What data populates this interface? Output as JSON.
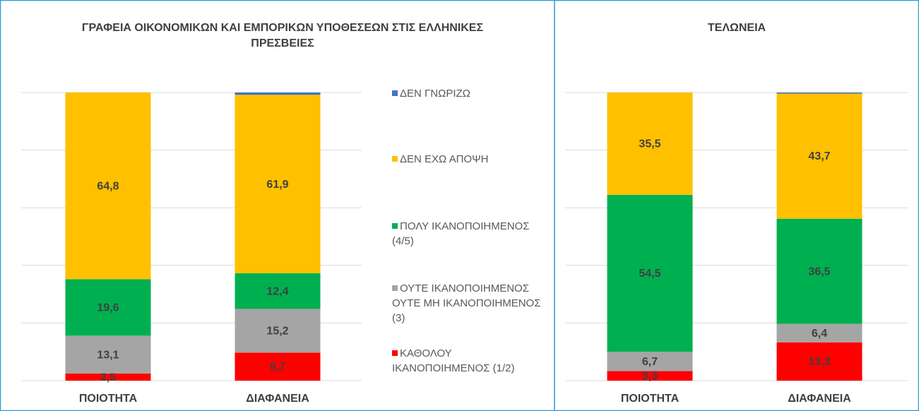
{
  "chart_data": [
    {
      "type": "stacked_bar",
      "title": "ΓΡΑΦΕΙΑ ΟΙΚΟΝΟΜΙΚΩΝ  ΚΑΙ ΕΜΠΟΡΙΚΩΝ ΥΠΟΘΕΣΕΩΝ ΣΤΙΣ ΕΛΛΗΝΙΚΕΣ  ΠΡΕΣΒΕΙΕΣ",
      "categories": [
        "ΠΟΙΟΤΗΤΑ",
        "ΔΙΑΦΑΝΕΙΑ"
      ],
      "series": [
        {
          "name": "ΚΑΘΟΛΟΥ ΙΚΑΝΟΠΟΙΗΜΕΝΟΣ (1/2)",
          "color": "#ff0000",
          "values": [
            2.5,
            9.7
          ],
          "value_labels": [
            "2,5",
            "9,7"
          ]
        },
        {
          "name": "ΟΥΤΕ ΙΚΑΝΟΠΟΙΗΜΕΝΟΣ ΟΥΤΕ ΜΗ ΙΚΑΝΟΠΟΙΗΜΕΝΟΣ (3)",
          "color": "#a5a5a5",
          "values": [
            13.1,
            15.2
          ],
          "value_labels": [
            "13,1",
            "15,2"
          ]
        },
        {
          "name": "ΠΟΛΥ ΙΚΑΝΟΠΟΙΗΜΕΝΟΣ (4/5)",
          "color": "#00b050",
          "values": [
            19.6,
            12.4
          ],
          "value_labels": [
            "19,6",
            "12,4"
          ]
        },
        {
          "name": "ΔΕΝ ΕΧΩ ΑΠΟΨΗ",
          "color": "#ffc000",
          "values": [
            64.8,
            61.9
          ],
          "value_labels": [
            "64,8",
            "61,9"
          ]
        },
        {
          "name": "ΔΕΝ ΓΝΩΡΙΖΩ",
          "color": "#4472c4",
          "values": [
            0,
            0.8
          ]
        }
      ],
      "ylim": [
        0,
        100
      ],
      "yticks": [
        0,
        20,
        40,
        60,
        80,
        100
      ],
      "grid": true,
      "legend": "right"
    },
    {
      "type": "stacked_bar",
      "title": "ΤΕΛΩΝΕΙΑ",
      "categories": [
        "ΠΟΙΟΤΗΤΑ",
        "ΔΙΑΦΑΝΕΙΑ"
      ],
      "series": [
        {
          "color": "#ff0000",
          "values": [
            3.3,
            13.3
          ],
          "value_labels": [
            "3,3",
            "13,3"
          ]
        },
        {
          "color": "#a5a5a5",
          "values": [
            6.7,
            6.4
          ],
          "value_labels": [
            "6,7",
            "6,4"
          ]
        },
        {
          "color": "#00b050",
          "values": [
            54.5,
            36.5
          ],
          "value_labels": [
            "54,5",
            "36,5"
          ]
        },
        {
          "color": "#ffc000",
          "values": [
            35.5,
            43.7
          ],
          "value_labels": [
            "35,5",
            "43,7"
          ]
        },
        {
          "color": "#4472c4",
          "values": [
            0,
            0.1
          ]
        }
      ],
      "ylim": [
        0,
        100
      ],
      "yticks": [
        0,
        20,
        40,
        60,
        80,
        100
      ],
      "grid": true
    }
  ]
}
